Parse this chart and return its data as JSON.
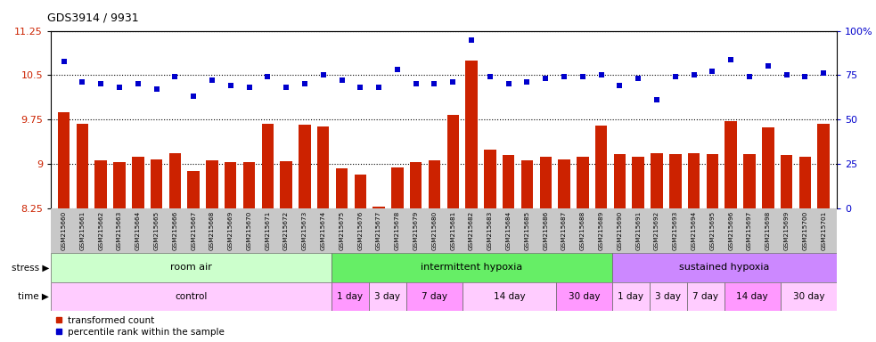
{
  "title": "GDS3914 / 9931",
  "samples": [
    "GSM215660",
    "GSM215661",
    "GSM215662",
    "GSM215663",
    "GSM215664",
    "GSM215665",
    "GSM215666",
    "GSM215667",
    "GSM215668",
    "GSM215669",
    "GSM215670",
    "GSM215671",
    "GSM215672",
    "GSM215673",
    "GSM215674",
    "GSM215675",
    "GSM215676",
    "GSM215677",
    "GSM215678",
    "GSM215679",
    "GSM215680",
    "GSM215681",
    "GSM215682",
    "GSM215683",
    "GSM215684",
    "GSM215685",
    "GSM215686",
    "GSM215687",
    "GSM215688",
    "GSM215689",
    "GSM215690",
    "GSM215691",
    "GSM215692",
    "GSM215693",
    "GSM215694",
    "GSM215695",
    "GSM215696",
    "GSM215697",
    "GSM215698",
    "GSM215699",
    "GSM215700",
    "GSM215701"
  ],
  "red_values": [
    9.87,
    9.68,
    9.07,
    9.04,
    9.13,
    9.08,
    9.18,
    8.88,
    9.07,
    9.03,
    9.03,
    9.68,
    9.05,
    9.67,
    9.63,
    8.93,
    8.83,
    8.28,
    8.95,
    9.03,
    9.07,
    9.83,
    10.75,
    9.25,
    9.15,
    9.07,
    9.13,
    9.08,
    9.13,
    9.65,
    9.17,
    9.12,
    9.18,
    9.17,
    9.18,
    9.17,
    9.73,
    9.17,
    9.62,
    9.15,
    9.13,
    9.68
  ],
  "blue_percentiles": [
    83,
    71,
    70,
    68,
    70,
    67,
    74,
    63,
    72,
    69,
    68,
    74,
    68,
    70,
    75,
    72,
    68,
    68,
    78,
    70,
    70,
    71,
    95,
    74,
    70,
    71,
    73,
    74,
    74,
    75,
    69,
    73,
    61,
    74,
    75,
    77,
    84,
    74,
    80,
    75,
    74,
    76
  ],
  "ylim_left": [
    8.25,
    11.25
  ],
  "ylim_right": [
    0,
    100
  ],
  "yticks_left": [
    8.25,
    9.0,
    9.75,
    10.5,
    11.25
  ],
  "ytick_labels_left": [
    "8.25",
    "9",
    "9.75",
    "10.5",
    "11.25"
  ],
  "yticks_right": [
    0,
    25,
    50,
    75,
    100
  ],
  "ytick_labels_right": [
    "0",
    "25",
    "50",
    "75",
    "100%"
  ],
  "bar_color": "#CC2200",
  "dot_color": "#0000CC",
  "stress_groups": [
    {
      "label": "room air",
      "start": 0,
      "end": 15,
      "color": "#CCFFCC"
    },
    {
      "label": "intermittent hypoxia",
      "start": 15,
      "end": 30,
      "color": "#66EE66"
    },
    {
      "label": "sustained hypoxia",
      "start": 30,
      "end": 42,
      "color": "#CC88FF"
    }
  ],
  "time_groups": [
    {
      "label": "control",
      "start": 0,
      "end": 15,
      "color": "#FFCCFF"
    },
    {
      "label": "1 day",
      "start": 15,
      "end": 17,
      "color": "#FF99FF"
    },
    {
      "label": "3 day",
      "start": 17,
      "end": 19,
      "color": "#FFCCFF"
    },
    {
      "label": "7 day",
      "start": 19,
      "end": 22,
      "color": "#FF99FF"
    },
    {
      "label": "14 day",
      "start": 22,
      "end": 27,
      "color": "#FFCCFF"
    },
    {
      "label": "30 day",
      "start": 27,
      "end": 30,
      "color": "#FF99FF"
    },
    {
      "label": "1 day",
      "start": 30,
      "end": 32,
      "color": "#FFCCFF"
    },
    {
      "label": "3 day",
      "start": 32,
      "end": 34,
      "color": "#FFCCFF"
    },
    {
      "label": "7 day",
      "start": 34,
      "end": 36,
      "color": "#FFCCFF"
    },
    {
      "label": "14 day",
      "start": 36,
      "end": 39,
      "color": "#FF99FF"
    },
    {
      "label": "30 day",
      "start": 39,
      "end": 42,
      "color": "#FFCCFF"
    }
  ],
  "stress_label": "stress",
  "time_label": "time",
  "legend_red_label": "transformed count",
  "legend_blue_label": "percentile rank within the sample",
  "xtick_bg_color": "#C8C8C8",
  "grid_linestyle": "dotted",
  "grid_linewidth": 0.8
}
